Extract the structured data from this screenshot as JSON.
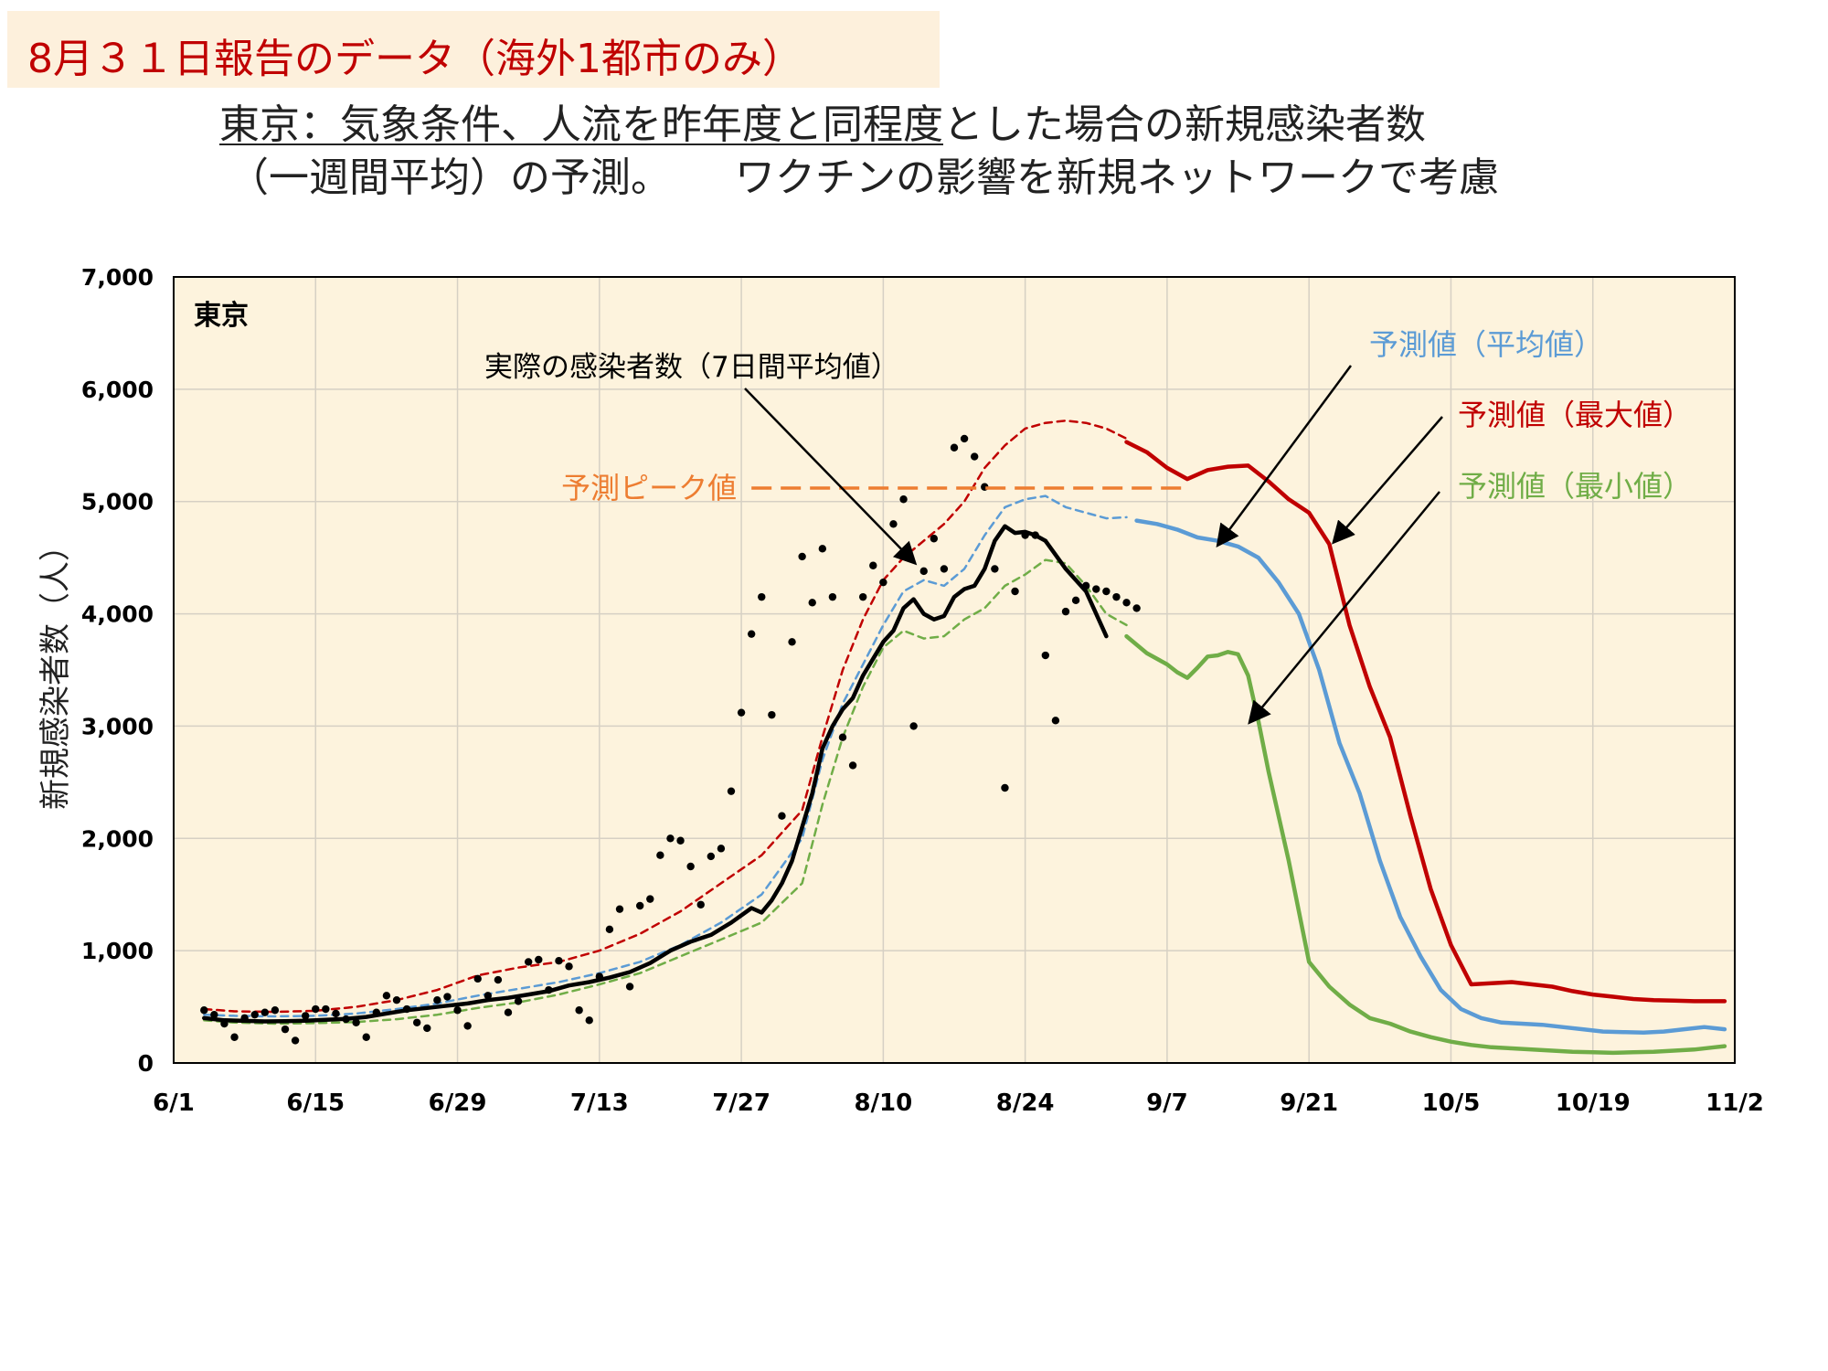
{
  "header": {
    "banner": "8月３１日報告のデータ（海外1都市のみ）",
    "title_line1_underlined": "東京：気象条件、人流を昨年度と同程度",
    "title_line1_rest": "とした場合の新規感染者数",
    "title_line2_a": "（一週間平均）の予測。",
    "title_line2_b": "ワクチンの影響を新規ネットワークで考慮"
  },
  "chart_data": {
    "type": "line",
    "region_label": "東京",
    "ylabel": "新規感染者数（人）",
    "ylim": [
      0,
      7000
    ],
    "yticks": [
      0,
      1000,
      2000,
      3000,
      4000,
      5000,
      6000,
      7000
    ],
    "ytick_labels": [
      "0",
      "1,000",
      "2,000",
      "3,000",
      "4,000",
      "5,000",
      "6,000",
      "7,000"
    ],
    "x_range_days": [
      0,
      154
    ],
    "x_origin_date": "6/1",
    "xticks": [
      0,
      14,
      28,
      42,
      56,
      70,
      84,
      98,
      112,
      126,
      140,
      154
    ],
    "xtick_labels": [
      "6/1",
      "6/15",
      "6/29",
      "7/13",
      "7/27",
      "8/10",
      "8/24",
      "9/7",
      "9/21",
      "10/5",
      "10/19",
      "11/2"
    ],
    "grid": true,
    "colors": {
      "background": "#fdf3dd",
      "actual": "#000000",
      "mean": "#5b9bd5",
      "max": "#c00000",
      "min": "#70ad47",
      "peak": "#ed7d31",
      "grid": "#d6d0c4"
    },
    "annotations": {
      "actual": "実際の感染者数（7日間平均値）",
      "peak": "予測ピーク値",
      "mean": "予測値（平均値）",
      "max": "予測値（最大値）",
      "min": "予測値（最小値）"
    },
    "peak_value": 5120,
    "peak_x_range": [
      57,
      100
    ],
    "series": [
      {
        "key": "actual",
        "x": [
          3,
          5,
          7,
          9,
          11,
          13,
          15,
          17,
          19,
          21,
          23,
          25,
          27,
          29,
          31,
          33,
          35,
          37,
          39,
          41,
          43,
          45,
          47,
          49,
          51,
          53,
          55,
          57,
          58,
          59,
          60,
          61,
          62,
          63,
          64,
          65,
          66,
          67,
          68,
          69,
          70,
          71,
          72,
          73,
          74,
          75,
          76,
          77,
          78,
          79,
          80,
          81,
          82,
          83,
          84,
          85,
          86
        ],
        "values": [
          400,
          380,
          375,
          370,
          372,
          376,
          385,
          392,
          410,
          440,
          470,
          490,
          510,
          530,
          560,
          580,
          610,
          640,
          690,
          720,
          760,
          810,
          890,
          1000,
          1080,
          1140,
          1250,
          1380,
          1340,
          1450,
          1600,
          1800,
          2100,
          2400,
          2800,
          3000,
          3150,
          3250,
          3450,
          3600,
          3750,
          3850,
          4050,
          4130,
          4000,
          3950,
          3980,
          4150,
          4220,
          4250,
          4400,
          4650,
          4780,
          4720,
          4730,
          4700,
          4650
        ]
      },
      {
        "key": "actual_tail",
        "x": [
          86,
          88,
          90,
          92
        ],
        "values": [
          4650,
          4400,
          4200,
          3800
        ]
      },
      {
        "key": "mean_dashed",
        "x": [
          3,
          6,
          10,
          14,
          18,
          22,
          26,
          30,
          34,
          38,
          42,
          46,
          50,
          54,
          58,
          62,
          64,
          66,
          68,
          70,
          72,
          74,
          76,
          78,
          80,
          82,
          84,
          86,
          88,
          90,
          92,
          94
        ],
        "values": [
          430,
          420,
          415,
          420,
          440,
          480,
          530,
          600,
          660,
          720,
          800,
          900,
          1050,
          1250,
          1500,
          2000,
          2700,
          3200,
          3550,
          3900,
          4200,
          4300,
          4250,
          4400,
          4700,
          4950,
          5020,
          5050,
          4950,
          4900,
          4850,
          4860
        ]
      },
      {
        "key": "max_dashed",
        "x": [
          3,
          6,
          10,
          14,
          18,
          22,
          26,
          30,
          34,
          38,
          42,
          46,
          50,
          54,
          58,
          62,
          64,
          66,
          68,
          70,
          72,
          74,
          76,
          78,
          80,
          82,
          84,
          86,
          88,
          90,
          92,
          94
        ],
        "values": [
          480,
          460,
          455,
          465,
          500,
          560,
          650,
          780,
          850,
          900,
          1000,
          1150,
          1350,
          1600,
          1850,
          2250,
          2900,
          3500,
          3950,
          4300,
          4500,
          4650,
          4800,
          5000,
          5300,
          5500,
          5650,
          5700,
          5720,
          5700,
          5650,
          5560
        ]
      },
      {
        "key": "min_dashed",
        "x": [
          3,
          6,
          10,
          14,
          18,
          22,
          26,
          30,
          34,
          38,
          42,
          46,
          50,
          54,
          58,
          62,
          64,
          66,
          68,
          70,
          72,
          74,
          76,
          78,
          80,
          82,
          84,
          86,
          88,
          90,
          92,
          94
        ],
        "values": [
          380,
          360,
          350,
          355,
          365,
          390,
          430,
          490,
          540,
          610,
          700,
          800,
          950,
          1100,
          1250,
          1600,
          2300,
          2900,
          3350,
          3700,
          3850,
          3780,
          3800,
          3950,
          4050,
          4250,
          4350,
          4480,
          4450,
          4250,
          4000,
          3900
        ]
      },
      {
        "key": "mean",
        "x": [
          95,
          97,
          99,
          101,
          103,
          105,
          107,
          109,
          111,
          113,
          115,
          117,
          119,
          121,
          123,
          125,
          127,
          129,
          131,
          133,
          135,
          137,
          139,
          141,
          143,
          145,
          147,
          149,
          151,
          153
        ],
        "values": [
          4830,
          4800,
          4750,
          4680,
          4650,
          4600,
          4500,
          4280,
          4000,
          3500,
          2850,
          2400,
          1800,
          1300,
          950,
          650,
          480,
          400,
          360,
          350,
          340,
          320,
          300,
          280,
          275,
          270,
          280,
          300,
          320,
          300
        ]
      },
      {
        "key": "max",
        "x": [
          94,
          96,
          98,
          100,
          102,
          104,
          106,
          108,
          110,
          112,
          114,
          116,
          118,
          120,
          122,
          124,
          126,
          128,
          130,
          132,
          134,
          136,
          138,
          140,
          142,
          144,
          146,
          148,
          150,
          152,
          153
        ],
        "values": [
          5530,
          5440,
          5300,
          5200,
          5280,
          5310,
          5320,
          5180,
          5020,
          4900,
          4620,
          3900,
          3350,
          2900,
          2200,
          1550,
          1050,
          700,
          710,
          720,
          700,
          680,
          640,
          610,
          590,
          570,
          560,
          555,
          550,
          550,
          550
        ]
      },
      {
        "key": "min",
        "x": [
          94,
          96,
          98,
          99,
          100,
          101,
          102,
          103,
          104,
          105,
          106,
          107,
          108,
          110,
          112,
          114,
          116,
          118,
          120,
          122,
          124,
          126,
          128,
          130,
          132,
          134,
          136,
          138,
          140,
          142,
          144,
          146,
          148,
          150,
          152,
          153
        ],
        "values": [
          3800,
          3650,
          3550,
          3480,
          3430,
          3520,
          3620,
          3630,
          3660,
          3640,
          3450,
          3050,
          2600,
          1800,
          900,
          680,
          520,
          400,
          350,
          280,
          230,
          190,
          160,
          140,
          130,
          120,
          110,
          100,
          95,
          90,
          95,
          100,
          110,
          120,
          140,
          150
        ]
      }
    ],
    "daily_points": {
      "x": [
        3,
        4,
        5,
        6,
        7,
        8,
        9,
        10,
        11,
        12,
        13,
        14,
        15,
        16,
        17,
        18,
        19,
        20,
        21,
        22,
        23,
        24,
        25,
        26,
        27,
        28,
        29,
        30,
        31,
        32,
        33,
        34,
        35,
        36,
        37,
        38,
        39,
        40,
        41,
        42,
        43,
        44,
        45,
        46,
        47,
        48,
        49,
        50,
        51,
        52,
        53,
        54,
        55,
        56,
        57,
        58,
        59,
        60,
        61,
        62,
        63,
        64,
        65,
        66,
        67,
        68,
        69,
        70,
        71,
        72,
        73,
        74,
        75,
        76,
        77,
        78,
        79,
        80,
        81,
        82,
        83,
        84,
        85,
        86,
        87,
        88,
        89,
        90,
        91,
        92,
        93,
        94,
        95
      ],
      "values": [
        470,
        430,
        350,
        230,
        400,
        430,
        450,
        470,
        300,
        200,
        420,
        480,
        480,
        440,
        390,
        360,
        230,
        450,
        600,
        560,
        480,
        360,
        310,
        560,
        590,
        470,
        330,
        750,
        600,
        740,
        450,
        550,
        900,
        920,
        650,
        910,
        860,
        470,
        380,
        770,
        1190,
        1370,
        680,
        1400,
        1460,
        1850,
        2000,
        1980,
        1750,
        1410,
        1840,
        1910,
        2420,
        3120,
        3820,
        4150,
        3100,
        2200,
        3750,
        4510,
        4100,
        4580,
        4150,
        2900,
        2650,
        4150,
        4430,
        4280,
        4800,
        5020,
        3000,
        4380,
        4670,
        4400,
        5480,
        5560,
        5400,
        5130,
        4400,
        2450,
        4200,
        4700,
        4700,
        3630,
        3050,
        4020,
        4120,
        4250,
        4220,
        4200,
        4150,
        4100,
        4050
      ]
    }
  }
}
